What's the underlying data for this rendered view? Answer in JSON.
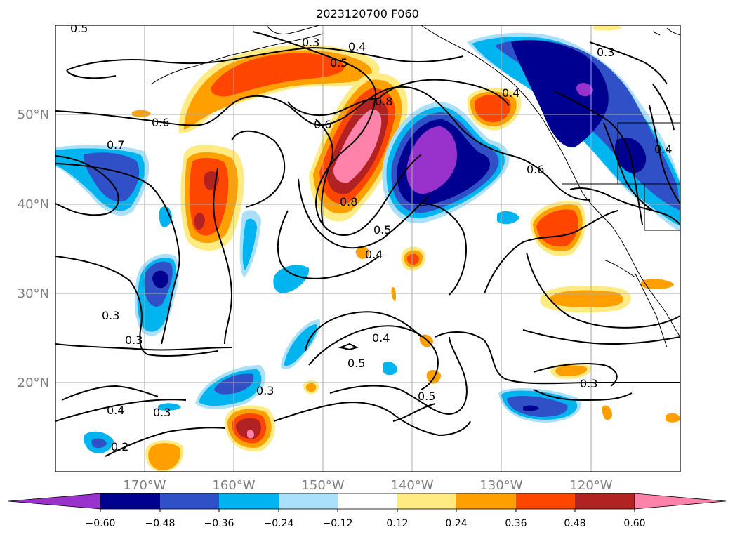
{
  "title": "2023120700 F060",
  "map": {
    "projection": "lat-lon",
    "lat_labels": [
      "50°N",
      "40°N",
      "30°N",
      "20°N"
    ],
    "lon_labels": [
      "170°W",
      "160°W",
      "150°W",
      "140°W",
      "130°W",
      "120°W"
    ],
    "grid": true,
    "grid_color": "#aaaaaa",
    "tick_label_color": "#808080",
    "coastline_color": "#000000",
    "contour_color": "#000000"
  },
  "contour_labels": [
    "0.5",
    "0.4",
    "0.3",
    "0.5",
    "0.6",
    "0.6",
    "0.7",
    "0.3",
    "0.3",
    "0.4",
    "0.3",
    "0.2",
    "0.3",
    "0.8",
    "0.8",
    "0.5",
    "0.4",
    "0.4",
    "0.5",
    "0.5",
    "0.6",
    "0.4",
    "0.3",
    "0.3",
    "0.4"
  ],
  "filled_regions": [
    {
      "level": -0.6,
      "desc": "Gulf of Alaska / off BC",
      "color": "#9932cc"
    },
    {
      "level": 0.6,
      "desc": "central North Pacific ridge",
      "color": "#ff82aa"
    },
    {
      "level": 0.48,
      "desc": "near Hawaii",
      "color": "#b22222"
    }
  ],
  "colorbar": {
    "extend": "both",
    "colors": [
      "#9932cc",
      "#000090",
      "#3050c8",
      "#00b4f0",
      "#aae0fa",
      "#ffffff",
      "#ffeb82",
      "#ffa000",
      "#ff4600",
      "#b22222",
      "#ff82aa"
    ],
    "tick_labels": [
      "−0.60",
      "−0.48",
      "−0.36",
      "−0.24",
      "−0.12",
      "0.12",
      "0.24",
      "0.36",
      "0.48",
      "0.60"
    ]
  }
}
